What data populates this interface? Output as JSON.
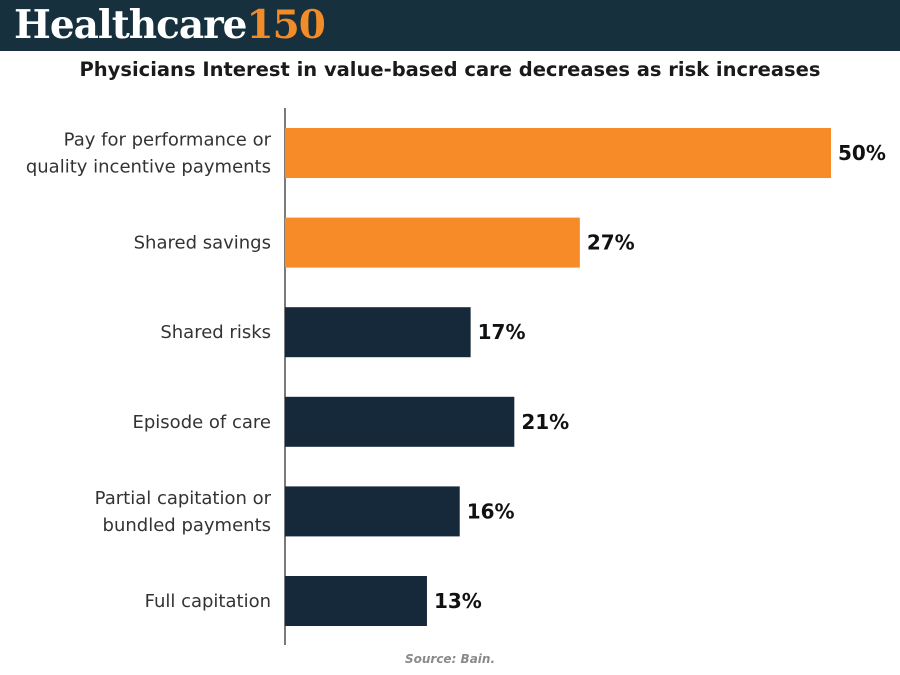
{
  "brand": {
    "word": "Healthcare",
    "number": "150"
  },
  "chart_data": {
    "type": "bar",
    "orientation": "horizontal",
    "title": "Physicians Interest in value-based care decreases as risk increases",
    "categories": [
      [
        "Pay for performance or",
        "quality incentive payments"
      ],
      [
        "Shared savings"
      ],
      [
        "Shared risks"
      ],
      [
        "Episode of care"
      ],
      [
        "Partial capitation or",
        "bundled payments"
      ],
      [
        "Full capitation"
      ]
    ],
    "values": [
      50,
      27,
      17,
      21,
      16,
      13
    ],
    "value_labels": [
      "50%",
      "27%",
      "17%",
      "21%",
      "16%",
      "13%"
    ],
    "bar_colors": [
      "#f68b27",
      "#f68b27",
      "#16293a",
      "#16293a",
      "#16293a",
      "#16293a"
    ],
    "xlim": [
      0,
      50
    ],
    "grid": false
  },
  "source": "Source: Bain.",
  "colors": {
    "header_bg": "#17303d",
    "accent": "#f28c28",
    "dark_bar": "#16293a"
  }
}
